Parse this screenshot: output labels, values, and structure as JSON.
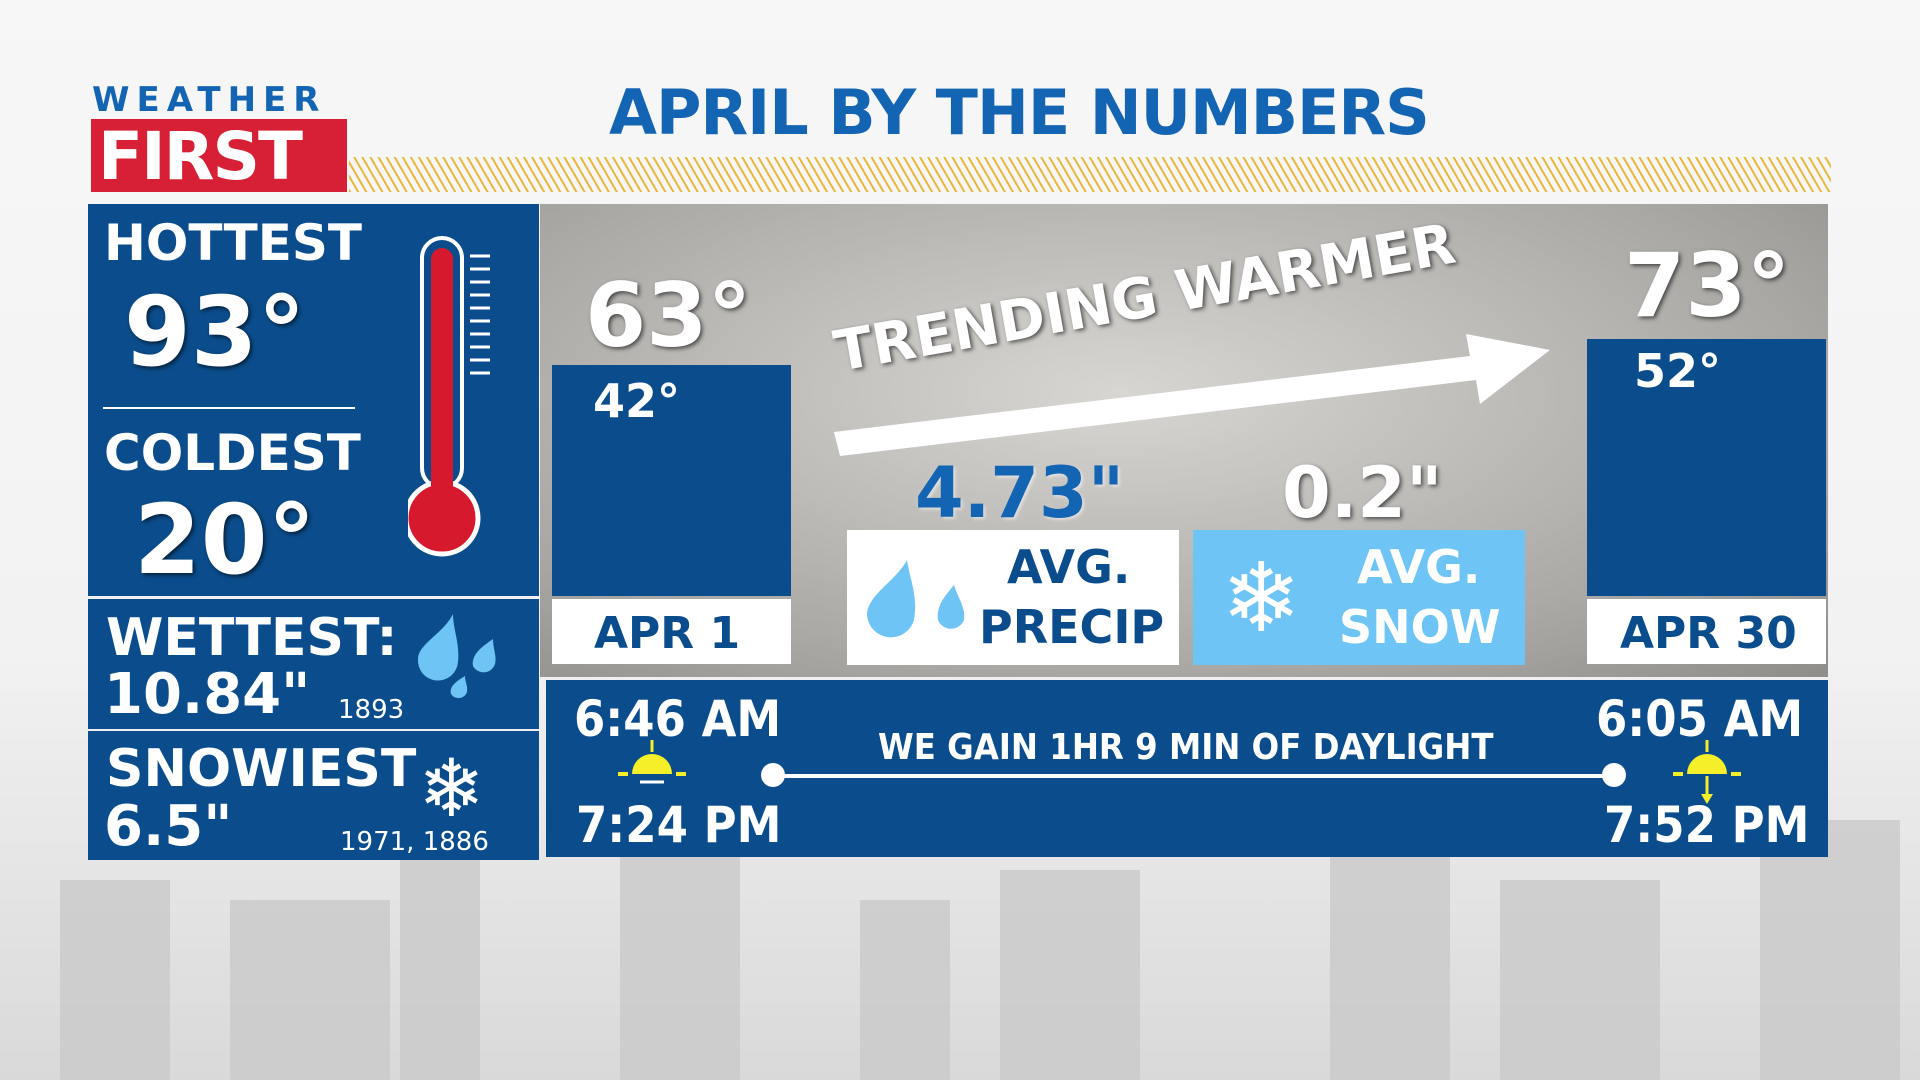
{
  "logo": {
    "top": "WEATHER",
    "bottom": "FIRST"
  },
  "title": "APRIL BY THE NUMBERS",
  "records": {
    "hottest_label": "HOTTEST",
    "hottest_value": "93°",
    "coldest_label": "COLDEST",
    "coldest_value": "20°",
    "wettest_label": "WETTEST:",
    "wettest_value": "10.84\"",
    "wettest_year": "1893",
    "snowiest_label": "SNOWIEST",
    "snowiest_value": "6.5\"",
    "snowiest_years": "1971, 1886"
  },
  "start": {
    "high": "63°",
    "low": "42°",
    "date": "APR 1"
  },
  "end": {
    "high": "73°",
    "low": "52°",
    "date": "APR 30"
  },
  "trend": "TRENDING WARMER",
  "precip": {
    "value": "4.73\"",
    "label1": "AVG.",
    "label2": "PRECIP"
  },
  "snow": {
    "value": "0.2\"",
    "label1": "AVG.",
    "label2": "SNOW"
  },
  "daylight": {
    "start_sunrise": "6:46 AM",
    "start_sunset": "7:24 PM",
    "end_sunrise": "6:05 AM",
    "end_sunset": "7:52 PM",
    "message": "WE GAIN 1HR 9 MIN OF DAYLIGHT"
  },
  "colors": {
    "panel_blue": "#0b4d8c",
    "title_blue": "#1464b4",
    "logo_red": "#d71f35",
    "snow_box": "#6ec4f5",
    "drop": "#6ec4f5",
    "thermo_red": "#d7192d",
    "sun": "#f5ef2a",
    "stripe": "#e8b83a"
  }
}
